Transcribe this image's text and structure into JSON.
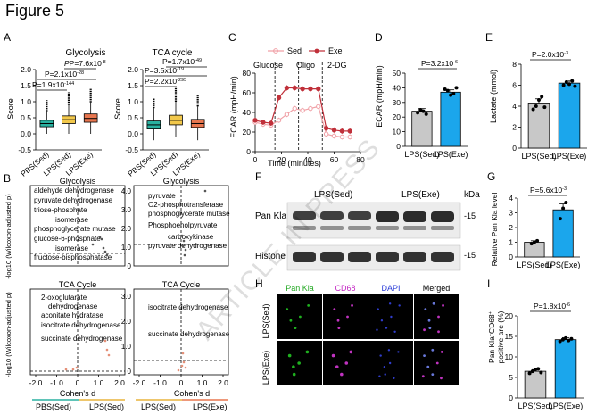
{
  "figure_title": "Figure 5",
  "watermark": "ARTICLE IN PRESS",
  "panels": {
    "A": "A",
    "B": "B",
    "C": "C",
    "D": "D",
    "E": "E",
    "F": "F",
    "G": "G",
    "H": "H",
    "I": "I"
  },
  "colors": {
    "sed": "#2ab1a0",
    "lps_sed_box": "#f2c84b",
    "exe_box": "#e8764f",
    "line_sed": "#f0a0a6",
    "line_exe": "#c0303a",
    "bar_gray": "#c8c8c8",
    "bar_blue": "#1ba6ec"
  },
  "pvals": {
    "glyco_1": "P=7.6x10",
    "glyco_1_exp": "-8",
    "glyco_2": "P=2.1x10",
    "glyco_2_exp": "-28",
    "glyco_3": "P=1.9x10",
    "glyco_3_exp": "-144",
    "tca_1": "P=1.7x10",
    "tca_1_exp": "-49",
    "tca_2": "P=3.5x10",
    "tca_2_exp": "-19",
    "tca_3": "P=2.2x10",
    "tca_3_exp": "-295",
    "D": "P=3.2x10",
    "D_exp": "-6",
    "E": "P=2.0x10",
    "E_exp": "-3",
    "G": "P=5.6x10",
    "G_exp": "-3",
    "I": "P=1.8x10",
    "I_exp": "-6"
  },
  "chart_data": [
    {
      "id": "A1",
      "type": "box",
      "title": "Glycolysis",
      "ylabel": "Score",
      "ylim": [
        -0.5,
        2.0
      ],
      "yticks": [
        "-0.5",
        "0.0",
        "0.5",
        "1.0",
        "1.5",
        "2.0"
      ],
      "categories": [
        "PBS(Sed)",
        "LPS(Sed)",
        "LPS(Exe)"
      ],
      "boxes": [
        {
          "whisk_lo": 0.0,
          "q1": 0.22,
          "med": 0.32,
          "q3": 0.42,
          "whisk_hi": 0.7,
          "out_hi": 1.05
        },
        {
          "whisk_lo": 0.0,
          "q1": 0.32,
          "med": 0.44,
          "q3": 0.56,
          "whisk_hi": 0.9,
          "out_hi": 1.3
        },
        {
          "whisk_lo": 0.0,
          "q1": 0.36,
          "med": 0.48,
          "q3": 0.62,
          "whisk_hi": 0.98,
          "out_hi": 1.4
        }
      ]
    },
    {
      "id": "A2",
      "type": "box",
      "title": "TCA cycle",
      "ylabel": "Score",
      "ylim": [
        -0.5,
        2.0
      ],
      "yticks": [
        "-0.5",
        "0.0",
        "0.5",
        "1.0",
        "1.5",
        "2.0"
      ],
      "categories": [
        "PBS(Sed)",
        "LPS(Sed)",
        "LPS(Exe)"
      ],
      "boxes": [
        {
          "whisk_lo": -0.2,
          "q1": 0.15,
          "med": 0.28,
          "q3": 0.4,
          "whisk_hi": 0.8,
          "out_hi": 1.1
        },
        {
          "whisk_lo": -0.1,
          "q1": 0.28,
          "med": 0.42,
          "q3": 0.58,
          "whisk_hi": 1.0,
          "out_hi": 1.45
        },
        {
          "whisk_lo": -0.2,
          "q1": 0.2,
          "med": 0.32,
          "q3": 0.45,
          "whisk_hi": 0.85,
          "out_hi": 1.2
        }
      ]
    },
    {
      "id": "B",
      "type": "volcano",
      "xlabel": "Cohen's d",
      "ylabel": "-log10 (Wilcoxon-adjusted p)",
      "xticks": [
        "-2.0",
        "-1.0",
        "0",
        "1.0",
        "2.0"
      ],
      "group_left_1": "PBS(Sed)",
      "group_right_1": "LPS(Sed)",
      "group_left_2": "LPS(Sed)",
      "group_right_2": "LPS(Exe)",
      "subplots": [
        {
          "title": "Glycolysis",
          "labels": [
            "aldehyde dehydrogenase",
            "pyruvate dehydrogenase",
            "triose-phosphate",
            "isomerase",
            "phosphoglycerate mutase",
            "glucose-6-phosphate",
            "isomerase",
            "fructose-bisphosphatase"
          ]
        },
        {
          "title": "Glycolysis",
          "labels": [
            "pyruvate",
            "O2-phosphotransferase",
            "phosphoglycerate mutase",
            "Phosphoenolpyruvate",
            "carboxykinase",
            "pyruvate dehydrogenase"
          ]
        },
        {
          "title": "TCA Cycle",
          "labels": [
            "2-oxoglutarate",
            "dehydrogenase",
            "aconitate hydratase",
            "isocitrate dehydrogenase",
            "succinate dehydrogenase"
          ]
        },
        {
          "title": "TCA Cycle",
          "labels": [
            "isocitrate dehydrogenase",
            "succinate dehydrogenase"
          ]
        }
      ]
    },
    {
      "id": "C",
      "type": "line",
      "xlabel": "Time (minutes)",
      "ylabel": "ECAR (mpH/min)",
      "xlim": [
        0,
        80
      ],
      "ylim": [
        0,
        80
      ],
      "xticks": [
        "0",
        "20",
        "40",
        "60",
        "80"
      ],
      "yticks": [
        "0",
        "20",
        "40",
        "60",
        "80"
      ],
      "injections": [
        "Glucose",
        "Oligo",
        "2-DG"
      ],
      "series": [
        {
          "name": "Sed",
          "x": [
            0,
            6,
            12,
            18,
            24,
            30,
            36,
            42,
            48,
            54,
            60,
            66,
            72
          ],
          "y": [
            30,
            28,
            27,
            32,
            38,
            44,
            42,
            44,
            46,
            18,
            16,
            15,
            15
          ]
        },
        {
          "name": "Exe",
          "x": [
            0,
            6,
            12,
            18,
            24,
            30,
            36,
            42,
            48,
            54,
            60,
            66,
            72
          ],
          "y": [
            32,
            30,
            29,
            55,
            65,
            65,
            64,
            64,
            64,
            24,
            22,
            21,
            21
          ]
        }
      ]
    },
    {
      "id": "D",
      "type": "bar",
      "ylabel": "ECAR (mpH/min)",
      "ylim": [
        0,
        50
      ],
      "yticks": [
        "0",
        "10",
        "20",
        "30",
        "40",
        "50"
      ],
      "categories": [
        "LPS(Sed)",
        "LPS(Exe)"
      ],
      "values": [
        24,
        37
      ]
    },
    {
      "id": "E",
      "type": "bar",
      "ylabel": "Lactate (mmol)",
      "ylim": [
        0,
        8
      ],
      "yticks": [
        "0",
        "2",
        "4",
        "6",
        "8"
      ],
      "categories": [
        "LPS(Sed)",
        "LPS(Exe)"
      ],
      "values": [
        4.3,
        6.2
      ]
    },
    {
      "id": "G",
      "type": "bar",
      "ylabel": "Relative Pan Kla level",
      "ylim": [
        0,
        4
      ],
      "yticks": [
        "0",
        "1",
        "2",
        "3",
        "4"
      ],
      "categories": [
        "LPS(Sed)",
        "LPS(Exe)"
      ],
      "values": [
        1.0,
        3.2
      ]
    },
    {
      "id": "I",
      "type": "bar",
      "ylabel_1": "Pan Kla",
      "ylabel_2": "CD68",
      "ylabel_3": "positive are (%)",
      "ylim": [
        0,
        20
      ],
      "yticks": [
        "0",
        "5",
        "10",
        "15",
        "20"
      ],
      "categories": [
        "LPS(Sed)",
        "LPS(Exe)"
      ],
      "values": [
        6.5,
        14.2
      ]
    }
  ],
  "blot": {
    "groups": [
      "LPS(Sed)",
      "LPS(Exe)"
    ],
    "kda": "kDa",
    "rows": [
      "Pan Kla",
      "Histone H3"
    ],
    "marker": "-15"
  },
  "micro": {
    "columns": [
      "Pan Kla",
      "CD68",
      "DAPI",
      "Merged"
    ],
    "rows": [
      "LPS(Sed)",
      "LPS(Exe)"
    ]
  }
}
